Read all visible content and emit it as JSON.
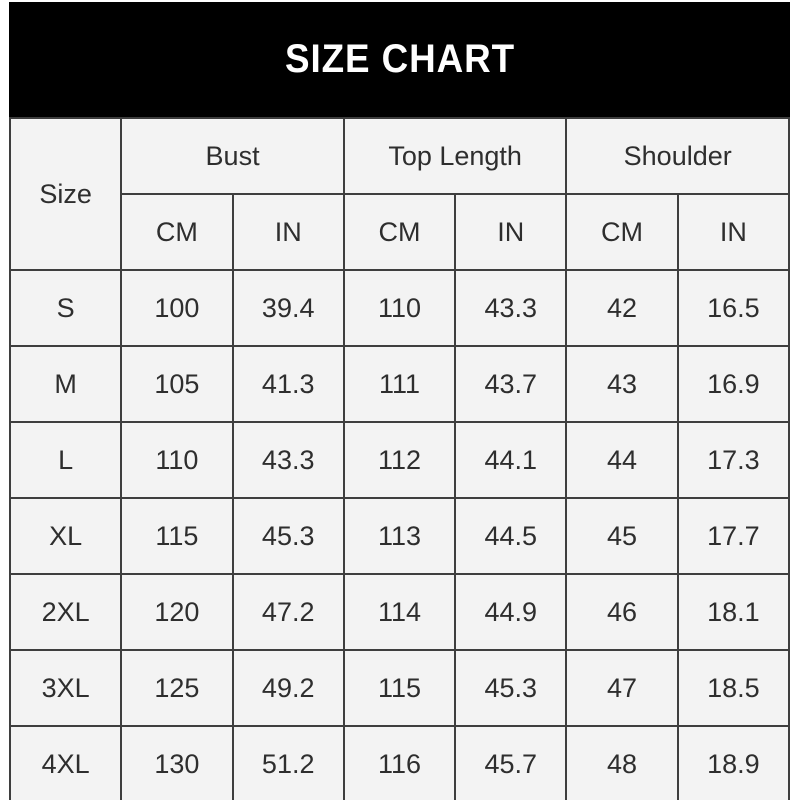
{
  "banner": {
    "title": "SIZE CHART",
    "bg_color": "#000000",
    "text_color": "#ffffff"
  },
  "table": {
    "corner_label": "Size",
    "groups": [
      {
        "label": "Bust"
      },
      {
        "label": "Top Length"
      },
      {
        "label": "Shoulder"
      }
    ],
    "unit_headers": [
      "CM",
      "IN",
      "CM",
      "IN",
      "CM",
      "IN"
    ],
    "rows": [
      {
        "size": "S",
        "values": [
          "100",
          "39.4",
          "110",
          "43.3",
          "42",
          "16.5"
        ]
      },
      {
        "size": "M",
        "values": [
          "105",
          "41.3",
          "111",
          "43.7",
          "43",
          "16.9"
        ]
      },
      {
        "size": "L",
        "values": [
          "110",
          "43.3",
          "112",
          "44.1",
          "44",
          "17.3"
        ]
      },
      {
        "size": "XL",
        "values": [
          "115",
          "45.3",
          "113",
          "44.5",
          "45",
          "17.7"
        ]
      },
      {
        "size": "2XL",
        "values": [
          "120",
          "47.2",
          "114",
          "44.9",
          "46",
          "18.1"
        ]
      },
      {
        "size": "3XL",
        "values": [
          "125",
          "49.2",
          "115",
          "45.3",
          "47",
          "18.5"
        ]
      },
      {
        "size": "4XL",
        "values": [
          "130",
          "51.2",
          "116",
          "45.7",
          "48",
          "18.9"
        ]
      }
    ],
    "colors": {
      "cell_bg": "#f3f3f3",
      "border": "#3e3e3e",
      "text": "#2e2e2e"
    }
  },
  "chart_data": {
    "type": "table",
    "title": "SIZE CHART",
    "columns": [
      "Size",
      "Bust CM",
      "Bust IN",
      "Top Length CM",
      "Top Length IN",
      "Shoulder CM",
      "Shoulder IN"
    ],
    "rows": [
      [
        "S",
        100,
        39.4,
        110,
        43.3,
        42,
        16.5
      ],
      [
        "M",
        105,
        41.3,
        111,
        43.7,
        43,
        16.9
      ],
      [
        "L",
        110,
        43.3,
        112,
        44.1,
        44,
        17.3
      ],
      [
        "XL",
        115,
        45.3,
        113,
        44.5,
        45,
        17.7
      ],
      [
        "2XL",
        120,
        47.2,
        114,
        44.9,
        46,
        18.1
      ],
      [
        "3XL",
        125,
        49.2,
        115,
        45.3,
        47,
        18.5
      ],
      [
        "4XL",
        130,
        51.2,
        116,
        45.7,
        48,
        18.9
      ]
    ]
  }
}
